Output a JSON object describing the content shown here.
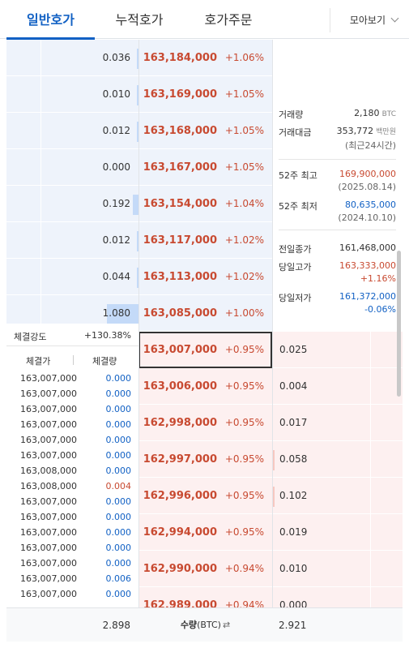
{
  "tabs": [
    {
      "label": "일반호가",
      "active": true
    },
    {
      "label": "누적호가",
      "active": false
    },
    {
      "label": "호가주문",
      "active": false
    }
  ],
  "view_button": {
    "label": "모아보기"
  },
  "colors": {
    "accent": "#1261c4",
    "up": "#c84a31",
    "down": "#1261c4",
    "ask_bg": "#eef3fb",
    "bid_bg": "#fdf0f0"
  },
  "asks": [
    {
      "qty": "0.036",
      "price": "163,184,000",
      "change": "+1.06%",
      "bar": 0.02
    },
    {
      "qty": "0.010",
      "price": "163,169,000",
      "change": "+1.05%",
      "bar": 0.01
    },
    {
      "qty": "0.012",
      "price": "163,168,000",
      "change": "+1.05%",
      "bar": 0.01
    },
    {
      "qty": "0.000",
      "price": "163,167,000",
      "change": "+1.05%",
      "bar": 0.0
    },
    {
      "qty": "0.192",
      "price": "163,154,000",
      "change": "+1.04%",
      "bar": 0.1
    },
    {
      "qty": "0.012",
      "price": "163,117,000",
      "change": "+1.02%",
      "bar": 0.01
    },
    {
      "qty": "0.044",
      "price": "163,113,000",
      "change": "+1.02%",
      "bar": 0.02
    },
    {
      "qty": "1.080",
      "price": "163,085,000",
      "change": "+1.00%",
      "bar": 0.56
    }
  ],
  "bids": [
    {
      "qty": "0.025",
      "price": "163,007,000",
      "change": "+0.95%",
      "bar": 0.0,
      "current": true
    },
    {
      "qty": "0.004",
      "price": "163,006,000",
      "change": "+0.95%",
      "bar": 0.0
    },
    {
      "qty": "0.017",
      "price": "162,998,000",
      "change": "+0.95%",
      "bar": 0.0
    },
    {
      "qty": "0.058",
      "price": "162,997,000",
      "change": "+0.95%",
      "bar": 0.02
    },
    {
      "qty": "0.102",
      "price": "162,996,000",
      "change": "+0.95%",
      "bar": 0.04
    },
    {
      "qty": "0.019",
      "price": "162,994,000",
      "change": "+0.95%",
      "bar": 0.0
    },
    {
      "qty": "0.010",
      "price": "162,990,000",
      "change": "+0.94%",
      "bar": 0.0
    },
    {
      "qty": "0.000",
      "price": "162,989,000",
      "change": "+0.94%",
      "bar": 0.0
    }
  ],
  "info": {
    "volume_label": "거래량",
    "volume_value": "2,180",
    "volume_unit": "BTC",
    "amount_label": "거래대금",
    "amount_value": "353,772",
    "amount_unit": "백만원",
    "amount_period": "(최근24시간)",
    "high52_label": "52주 최고",
    "high52_value": "169,900,000",
    "high52_date": "(2025.08.14)",
    "low52_label": "52주 최저",
    "low52_value": "80,635,000",
    "low52_date": "(2024.10.10)",
    "prev_close_label": "전일종가",
    "prev_close_value": "161,468,000",
    "day_high_label": "당일고가",
    "day_high_value": "163,333,000",
    "day_high_pct": "+1.16%",
    "day_low_label": "당일저가",
    "day_low_value": "161,372,000",
    "day_low_pct": "-0.06%"
  },
  "trades": {
    "strength_label": "체결강도",
    "strength_value": "+130.38%",
    "price_header": "체결가",
    "volume_header": "체결량",
    "rows": [
      {
        "price": "163,007,000",
        "volume": "0.000",
        "up": false
      },
      {
        "price": "163,007,000",
        "volume": "0.000",
        "up": false
      },
      {
        "price": "163,007,000",
        "volume": "0.000",
        "up": false
      },
      {
        "price": "163,007,000",
        "volume": "0.000",
        "up": false
      },
      {
        "price": "163,007,000",
        "volume": "0.000",
        "up": false
      },
      {
        "price": "163,007,000",
        "volume": "0.000",
        "up": false
      },
      {
        "price": "163,008,000",
        "volume": "0.000",
        "up": false
      },
      {
        "price": "163,008,000",
        "volume": "0.004",
        "up": true
      },
      {
        "price": "163,007,000",
        "volume": "0.000",
        "up": false
      },
      {
        "price": "163,007,000",
        "volume": "0.000",
        "up": false
      },
      {
        "price": "163,007,000",
        "volume": "0.000",
        "up": false
      },
      {
        "price": "163,007,000",
        "volume": "0.000",
        "up": false
      },
      {
        "price": "163,007,000",
        "volume": "0.000",
        "up": false
      },
      {
        "price": "163,007,000",
        "volume": "0.006",
        "up": false
      },
      {
        "price": "163,007,000",
        "volume": "0.000",
        "up": false
      }
    ]
  },
  "footer": {
    "ask_total": "2.898",
    "center_label": "수량",
    "center_unit": "(BTC)",
    "bid_total": "2.921",
    "swap_icon": "swap-icon"
  }
}
